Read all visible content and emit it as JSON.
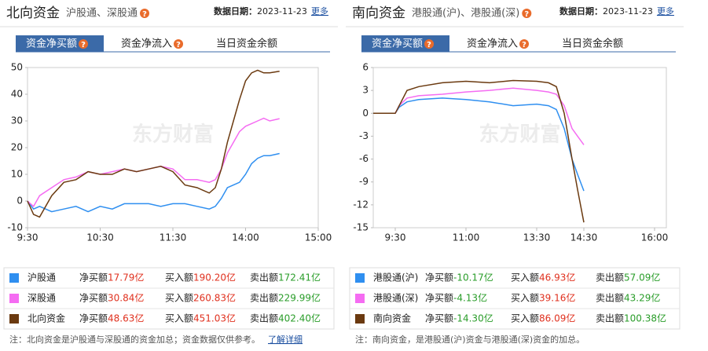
{
  "help_icon": "?",
  "panels": [
    {
      "title": "北向资金",
      "subtitle": "沪股通、深股通",
      "date_label": "数据日期：",
      "date": "2023-11-23",
      "more": "更多",
      "tabs": [
        "资金净买额",
        "资金净流入",
        "当日资金余额"
      ],
      "rows": [
        {
          "buy_label": "净买额",
          "buy": "17.79亿",
          "in_label": "买入额",
          "in": "190.20亿",
          "out_label": "卖出额",
          "out": "172.41亿"
        },
        {
          "buy_label": "净买额",
          "buy": "30.84亿",
          "in_label": "买入额",
          "in": "260.83亿",
          "out_label": "卖出额",
          "out": "229.99亿"
        },
        {
          "buy_label": "净买额",
          "buy": "48.63亿",
          "in_label": "买入额",
          "in": "451.03亿",
          "out_label": "卖出额",
          "out": "402.40亿"
        }
      ],
      "note": "注：北向资金是沪股通与深股通的资金加总；资金数据仅供参考。",
      "note_link": "了解详细"
    },
    {
      "title": "南向资金",
      "subtitle": "港股通(沪)、港股通(深)",
      "date_label": "数据日期：",
      "date": "2023-11-23",
      "more": "更多",
      "tabs": [
        "资金净买额",
        "资金净流入",
        "当日资金余额"
      ],
      "rows": [
        {
          "buy_label": "净买额",
          "buy": "-10.17亿",
          "in_label": "买入额",
          "in": "46.93亿",
          "out_label": "卖出额",
          "out": "57.09亿"
        },
        {
          "buy_label": "净买额",
          "buy": "-4.13亿",
          "in_label": "买入额",
          "in": "39.16亿",
          "out_label": "卖出额",
          "out": "43.29亿"
        },
        {
          "buy_label": "净买额",
          "buy": "-14.30亿",
          "in_label": "买入额",
          "in": "86.09亿",
          "out_label": "卖出额",
          "out": "100.38亿"
        }
      ],
      "note": "注：南向资金，是港股通(沪)资金与港股通(深)资金的加总。"
    }
  ],
  "chart_data": [
    {
      "type": "line",
      "watermark": "东方财富",
      "grid": false,
      "x": [
        0,
        5,
        10,
        20,
        30,
        40,
        50,
        60,
        70,
        80,
        90,
        100,
        110,
        120,
        130,
        140,
        150,
        155,
        160,
        165,
        170,
        175,
        180,
        185,
        190,
        195,
        200,
        208
      ],
      "xlim": [
        0,
        240
      ],
      "xticks": [
        {
          "value": 0,
          "label": "9:30"
        },
        {
          "value": 60,
          "label": "10:30"
        },
        {
          "value": 120,
          "label": "11:30"
        },
        {
          "value": 180,
          "label": "14:00"
        },
        {
          "value": 240,
          "label": "15:00"
        }
      ],
      "ylim": [
        -10,
        50
      ],
      "yticks": [
        -10,
        0,
        10,
        20,
        30,
        40,
        50
      ],
      "series": [
        {
          "name": "沪股通",
          "color": "#2f8ff0",
          "values": [
            0,
            -3,
            -2,
            -4,
            -3,
            -2,
            -4,
            -2,
            -3,
            -1,
            -1,
            -1,
            -2,
            -1,
            -1,
            -2,
            -3,
            -2,
            1,
            5,
            6,
            7,
            10,
            14,
            16,
            17,
            17,
            17.79
          ]
        },
        {
          "name": "深股通",
          "color": "#f56cf2",
          "values": [
            0,
            -2,
            2,
            5,
            8,
            9,
            11,
            10,
            11,
            12,
            11,
            12,
            13,
            12,
            8,
            8,
            7,
            8,
            12,
            18,
            22,
            26,
            28,
            29,
            30,
            31,
            30,
            30.84
          ]
        },
        {
          "name": "北向资金",
          "color": "#6b3a10",
          "values": [
            0,
            -5,
            -6,
            2,
            7,
            8,
            11,
            10,
            10,
            12,
            11,
            12,
            13,
            11,
            6,
            5,
            3,
            5,
            12,
            22,
            30,
            38,
            45,
            48,
            49,
            48,
            48,
            48.63
          ]
        }
      ]
    },
    {
      "type": "line",
      "watermark": "东方财富",
      "grid": false,
      "x": [
        -28,
        0,
        5,
        15,
        30,
        60,
        90,
        120,
        150,
        180,
        195,
        205,
        215,
        225,
        232,
        240
      ],
      "xlim": [
        -28,
        345
      ],
      "xticks": [
        {
          "value": 0,
          "label": "9:30"
        },
        {
          "value": 90,
          "label": "11:00"
        },
        {
          "value": 180,
          "label": "13:30"
        },
        {
          "value": 240,
          "label": "14:30"
        },
        {
          "value": 330,
          "label": "16:00"
        }
      ],
      "ylim": [
        -15,
        6
      ],
      "yticks": [
        -15,
        -12,
        -9,
        -6,
        -3,
        0,
        3,
        6
      ],
      "series": [
        {
          "name": "港股通(沪)",
          "color": "#2f8ff0",
          "values": [
            0,
            0,
            0.8,
            1.5,
            1.8,
            2,
            1.8,
            1.5,
            1,
            1.2,
            1,
            0.5,
            -2,
            -6,
            -8,
            -10.17
          ]
        },
        {
          "name": "港股通(深)",
          "color": "#f56cf2",
          "values": [
            0,
            0,
            1,
            2,
            2.3,
            2.5,
            2.8,
            3,
            3.3,
            3,
            2.8,
            2.5,
            1,
            -2,
            -3,
            -4.13
          ]
        },
        {
          "name": "南向资金",
          "color": "#6b3a10",
          "values": [
            0,
            0,
            1,
            3,
            3.5,
            4,
            4.2,
            4,
            4.3,
            4.2,
            4,
            3.5,
            0,
            -6,
            -10,
            -14.3
          ]
        }
      ]
    }
  ]
}
